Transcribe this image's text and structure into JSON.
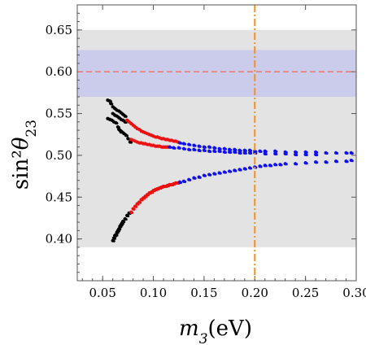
{
  "chart_data": {
    "type": "scatter",
    "title": "",
    "xlabel": "m3(eV)",
    "ylabel": "sin²θ23",
    "xlim": [
      0.025,
      0.3
    ],
    "ylim": [
      0.35,
      0.68
    ],
    "x_ticks": [
      "0.05",
      "0.10",
      "0.15",
      "0.20",
      "0.25",
      "0.30"
    ],
    "x_tick_values": [
      0.05,
      0.1,
      0.15,
      0.2,
      0.25,
      0.3
    ],
    "y_ticks": [
      "0.40",
      "0.45",
      "0.50",
      "0.55",
      "0.60",
      "0.65"
    ],
    "y_tick_values": [
      0.4,
      0.45,
      0.5,
      0.55,
      0.6,
      0.65
    ],
    "grid": false,
    "bands": [
      {
        "y_range": [
          0.39,
          0.65
        ],
        "color": "#e3e3e3"
      },
      {
        "y_range": [
          0.57,
          0.626
        ],
        "color": "#cbcbeb"
      }
    ],
    "reference_lines": [
      {
        "orientation": "horizontal",
        "value": 0.6,
        "color": "#f07060",
        "style": "dashed"
      },
      {
        "orientation": "vertical",
        "value": 0.2,
        "color": "#f5901e",
        "style": "dashdot"
      }
    ],
    "series": [
      {
        "color": "#000000",
        "points": [
          [
            0.06,
            0.398
          ],
          [
            0.061,
            0.401
          ],
          [
            0.062,
            0.404
          ],
          [
            0.063,
            0.405
          ],
          [
            0.064,
            0.408
          ],
          [
            0.065,
            0.41
          ],
          [
            0.066,
            0.412
          ],
          [
            0.067,
            0.415
          ],
          [
            0.068,
            0.417
          ],
          [
            0.069,
            0.419
          ],
          [
            0.07,
            0.421
          ],
          [
            0.072,
            0.424
          ],
          [
            0.074,
            0.428
          ],
          [
            0.076,
            0.431
          ],
          [
            0.055,
            0.566
          ],
          [
            0.057,
            0.565
          ],
          [
            0.058,
            0.562
          ],
          [
            0.06,
            0.558
          ],
          [
            0.062,
            0.556
          ],
          [
            0.064,
            0.554
          ],
          [
            0.066,
            0.553
          ],
          [
            0.068,
            0.551
          ],
          [
            0.07,
            0.549
          ],
          [
            0.072,
            0.547
          ],
          [
            0.06,
            0.55
          ],
          [
            0.062,
            0.548
          ],
          [
            0.064,
            0.547
          ],
          [
            0.066,
            0.545
          ],
          [
            0.068,
            0.543
          ],
          [
            0.07,
            0.542
          ],
          [
            0.072,
            0.54
          ],
          [
            0.055,
            0.544
          ],
          [
            0.057,
            0.543
          ],
          [
            0.059,
            0.542
          ],
          [
            0.061,
            0.54
          ],
          [
            0.063,
            0.539
          ],
          [
            0.065,
            0.534
          ],
          [
            0.067,
            0.53
          ],
          [
            0.069,
            0.528
          ],
          [
            0.071,
            0.526
          ],
          [
            0.073,
            0.524
          ],
          [
            0.075,
            0.52
          ],
          [
            0.077,
            0.516
          ],
          [
            0.066,
            0.531
          ],
          [
            0.068,
            0.528
          ]
        ]
      },
      {
        "color": "#ee1111",
        "points": [
          [
            0.078,
            0.432
          ],
          [
            0.08,
            0.436
          ],
          [
            0.082,
            0.439
          ],
          [
            0.084,
            0.442
          ],
          [
            0.086,
            0.444
          ],
          [
            0.088,
            0.447
          ],
          [
            0.09,
            0.449
          ],
          [
            0.092,
            0.451
          ],
          [
            0.094,
            0.453
          ],
          [
            0.096,
            0.455
          ],
          [
            0.098,
            0.456
          ],
          [
            0.1,
            0.458
          ],
          [
            0.102,
            0.459
          ],
          [
            0.104,
            0.46
          ],
          [
            0.106,
            0.461
          ],
          [
            0.108,
            0.462
          ],
          [
            0.11,
            0.463
          ],
          [
            0.112,
            0.463
          ],
          [
            0.114,
            0.464
          ],
          [
            0.116,
            0.465
          ],
          [
            0.118,
            0.465
          ],
          [
            0.12,
            0.466
          ],
          [
            0.122,
            0.467
          ],
          [
            0.124,
            0.467
          ],
          [
            0.074,
            0.542
          ],
          [
            0.076,
            0.54
          ],
          [
            0.078,
            0.538
          ],
          [
            0.08,
            0.536
          ],
          [
            0.082,
            0.534
          ],
          [
            0.084,
            0.532
          ],
          [
            0.086,
            0.531
          ],
          [
            0.088,
            0.529
          ],
          [
            0.09,
            0.528
          ],
          [
            0.092,
            0.527
          ],
          [
            0.094,
            0.526
          ],
          [
            0.096,
            0.525
          ],
          [
            0.098,
            0.524
          ],
          [
            0.1,
            0.523
          ],
          [
            0.102,
            0.522
          ],
          [
            0.104,
            0.522
          ],
          [
            0.106,
            0.521
          ],
          [
            0.108,
            0.52
          ],
          [
            0.11,
            0.52
          ],
          [
            0.112,
            0.519
          ],
          [
            0.114,
            0.519
          ],
          [
            0.116,
            0.518
          ],
          [
            0.118,
            0.518
          ],
          [
            0.12,
            0.517
          ],
          [
            0.122,
            0.517
          ],
          [
            0.124,
            0.516
          ],
          [
            0.078,
            0.519
          ],
          [
            0.08,
            0.518
          ],
          [
            0.082,
            0.517
          ],
          [
            0.084,
            0.516
          ],
          [
            0.086,
            0.515
          ],
          [
            0.088,
            0.515
          ],
          [
            0.09,
            0.514
          ],
          [
            0.092,
            0.514
          ],
          [
            0.094,
            0.513
          ],
          [
            0.096,
            0.513
          ],
          [
            0.098,
            0.512
          ],
          [
            0.1,
            0.512
          ],
          [
            0.102,
            0.511
          ],
          [
            0.104,
            0.511
          ],
          [
            0.106,
            0.511
          ],
          [
            0.108,
            0.51
          ],
          [
            0.11,
            0.51
          ],
          [
            0.112,
            0.51
          ],
          [
            0.114,
            0.51
          ]
        ]
      },
      {
        "color": "#1111ee",
        "points": [
          [
            0.126,
            0.468
          ],
          [
            0.13,
            0.469
          ],
          [
            0.135,
            0.471
          ],
          [
            0.14,
            0.473
          ],
          [
            0.145,
            0.474
          ],
          [
            0.15,
            0.476
          ],
          [
            0.155,
            0.477
          ],
          [
            0.16,
            0.478
          ],
          [
            0.165,
            0.479
          ],
          [
            0.17,
            0.48
          ],
          [
            0.175,
            0.481
          ],
          [
            0.18,
            0.482
          ],
          [
            0.185,
            0.483
          ],
          [
            0.19,
            0.484
          ],
          [
            0.195,
            0.485
          ],
          [
            0.2,
            0.486
          ],
          [
            0.205,
            0.487
          ],
          [
            0.21,
            0.488
          ],
          [
            0.215,
            0.488
          ],
          [
            0.22,
            0.489
          ],
          [
            0.225,
            0.489
          ],
          [
            0.23,
            0.49
          ],
          [
            0.24,
            0.49
          ],
          [
            0.25,
            0.491
          ],
          [
            0.26,
            0.492
          ],
          [
            0.27,
            0.492
          ],
          [
            0.28,
            0.493
          ],
          [
            0.29,
            0.493
          ],
          [
            0.295,
            0.494
          ],
          [
            0.126,
            0.515
          ],
          [
            0.13,
            0.514
          ],
          [
            0.135,
            0.513
          ],
          [
            0.14,
            0.512
          ],
          [
            0.145,
            0.511
          ],
          [
            0.15,
            0.51
          ],
          [
            0.155,
            0.51
          ],
          [
            0.16,
            0.509
          ],
          [
            0.165,
            0.508
          ],
          [
            0.17,
            0.508
          ],
          [
            0.175,
            0.507
          ],
          [
            0.18,
            0.507
          ],
          [
            0.185,
            0.506
          ],
          [
            0.19,
            0.506
          ],
          [
            0.195,
            0.506
          ],
          [
            0.2,
            0.505
          ],
          [
            0.205,
            0.505
          ],
          [
            0.21,
            0.505
          ],
          [
            0.22,
            0.505
          ],
          [
            0.23,
            0.504
          ],
          [
            0.24,
            0.504
          ],
          [
            0.25,
            0.504
          ],
          [
            0.26,
            0.504
          ],
          [
            0.27,
            0.503
          ],
          [
            0.28,
            0.503
          ],
          [
            0.29,
            0.503
          ],
          [
            0.295,
            0.503
          ],
          [
            0.116,
            0.51
          ],
          [
            0.12,
            0.509
          ],
          [
            0.125,
            0.509
          ],
          [
            0.13,
            0.508
          ],
          [
            0.135,
            0.507
          ],
          [
            0.14,
            0.507
          ],
          [
            0.145,
            0.506
          ],
          [
            0.15,
            0.506
          ],
          [
            0.155,
            0.505
          ],
          [
            0.16,
            0.505
          ],
          [
            0.165,
            0.505
          ],
          [
            0.17,
            0.504
          ],
          [
            0.175,
            0.504
          ],
          [
            0.18,
            0.504
          ],
          [
            0.185,
            0.503
          ],
          [
            0.19,
            0.503
          ],
          [
            0.195,
            0.503
          ],
          [
            0.2,
            0.503
          ],
          [
            0.21,
            0.502
          ],
          [
            0.22,
            0.502
          ],
          [
            0.23,
            0.502
          ],
          [
            0.24,
            0.501
          ],
          [
            0.25,
            0.501
          ],
          [
            0.26,
            0.501
          ]
        ]
      }
    ]
  }
}
